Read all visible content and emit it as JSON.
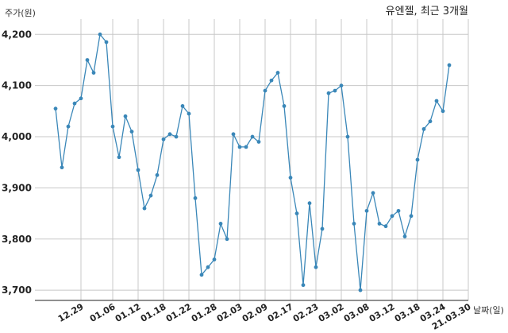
{
  "chart_data": {
    "type": "line",
    "title": "유엔젤, 최근 3개월",
    "ylabel": "주가(원)",
    "xlabel": "날짜(일)",
    "ylim": [
      3680,
      4230
    ],
    "yticks": [
      3700,
      3800,
      3900,
      4000,
      4100,
      4200
    ],
    "ytick_labels": [
      "3,700",
      "3,800",
      "3,900",
      "4,000",
      "4,100",
      "4,200"
    ],
    "grid": true,
    "line_color": "#3a87b8",
    "x_tick_labels": [
      "12.29",
      "01.06",
      "01.12",
      "01.18",
      "01.22",
      "01.28",
      "02.03",
      "02.09",
      "02.17",
      "02.23",
      "03.02",
      "03.08",
      "03.12",
      "03.18",
      "03.24",
      "21.03.30"
    ],
    "x_tick_positions": [
      4,
      9,
      13,
      17,
      21,
      25,
      29,
      33,
      37,
      41,
      45,
      49,
      53,
      57,
      61,
      65
    ],
    "series": [
      {
        "values": [
          4055,
          3940,
          4020,
          4065,
          4075,
          4150,
          4125,
          4200,
          4185,
          4020,
          3960,
          4040,
          4010,
          3935,
          3860,
          3885,
          3925,
          3995,
          4005,
          4000,
          4060,
          4045,
          3880,
          3730,
          3745,
          3760,
          3830,
          3800,
          4005,
          3980,
          3980,
          4000,
          3990,
          4090,
          4110,
          4125,
          4060,
          3920,
          3850,
          3710,
          3870,
          3745,
          3820,
          4085,
          4090,
          4100,
          4000,
          3830,
          3700,
          3855,
          3890,
          3830,
          3825,
          3845,
          3855,
          3805,
          3845,
          3955,
          4015,
          4030,
          4070,
          4050,
          4140
        ]
      }
    ]
  }
}
